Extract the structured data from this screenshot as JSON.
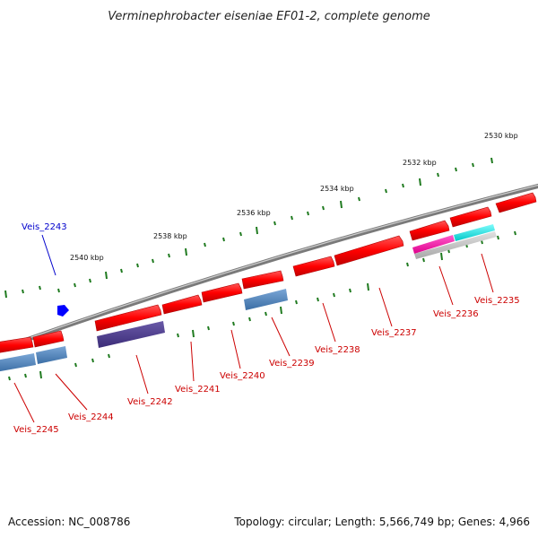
{
  "title": "Verminephrobacter eiseniae EF01-2, complete genome",
  "footer": {
    "accession": "Accession: NC_008786",
    "summary": "Topology: circular; Length: 5,566,749 bp; Genes: 4,966"
  },
  "colors": {
    "backbone": "#888888",
    "ticks": "#1f7a1f",
    "label_red": "#cc0000",
    "label_blue": "#0000cc",
    "gene_red": "#ff0000",
    "gene_steelblue": "#4a7fb5",
    "gene_indigo": "#4b3c8c",
    "gene_magenta": "#ff00aa",
    "gene_cyan": "#00e5e5",
    "gene_gray": "#bbbbbb",
    "gene_blue": "#0000ff"
  },
  "ticks": [
    {
      "label": "2530 kbp"
    },
    {
      "label": "2532 kbp"
    },
    {
      "label": "2534 kbp"
    },
    {
      "label": "2536 kbp"
    },
    {
      "label": "2538 kbp"
    },
    {
      "label": "2540 kbp"
    }
  ],
  "genes": [
    {
      "id": "Veis_2235",
      "label": "Veis_2235"
    },
    {
      "id": "Veis_2236",
      "label": "Veis_2236"
    },
    {
      "id": "Veis_2237",
      "label": "Veis_2237"
    },
    {
      "id": "Veis_2238",
      "label": "Veis_2238"
    },
    {
      "id": "Veis_2239",
      "label": "Veis_2239"
    },
    {
      "id": "Veis_2240",
      "label": "Veis_2240"
    },
    {
      "id": "Veis_2241",
      "label": "Veis_2241"
    },
    {
      "id": "Veis_2242",
      "label": "Veis_2242"
    },
    {
      "id": "Veis_2243",
      "label": "Veis_2243"
    },
    {
      "id": "Veis_2244",
      "label": "Veis_2244"
    },
    {
      "id": "Veis_2245",
      "label": "Veis_2245"
    }
  ]
}
